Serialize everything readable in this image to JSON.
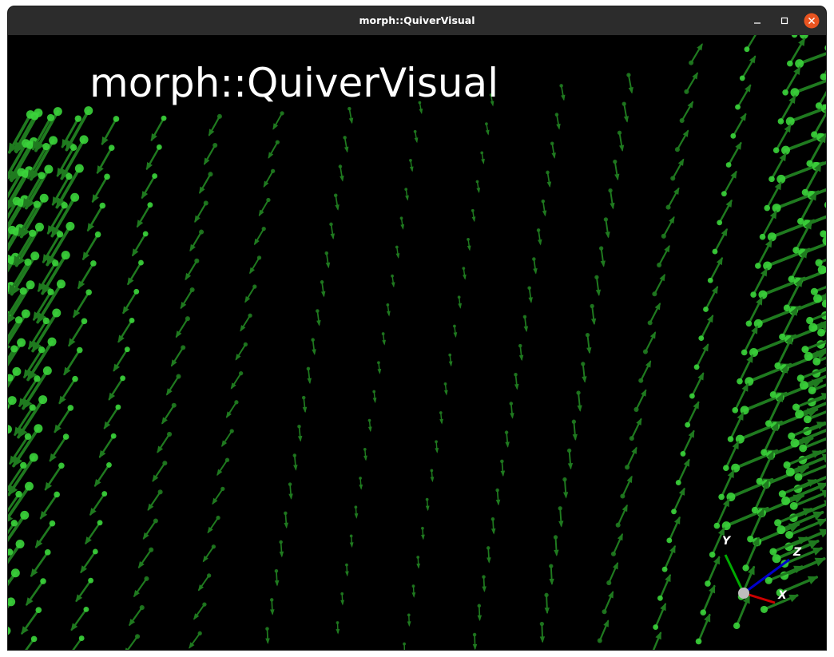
{
  "window": {
    "title": "morph::QuiverVisual"
  },
  "scene": {
    "label": "morph::QuiverVisual",
    "background": "#000000",
    "arrow_color": "#1f7a1f",
    "arrow_highlight": "#3bd43b"
  },
  "axes": {
    "x_label": "X",
    "y_label": "Y",
    "z_label": "Z",
    "x_color": "#cc0000",
    "y_color": "#00aa00",
    "z_color": "#0000cc"
  },
  "icons": {
    "minimize": "minimize-icon",
    "maximize": "maximize-icon",
    "close": "close-icon"
  }
}
